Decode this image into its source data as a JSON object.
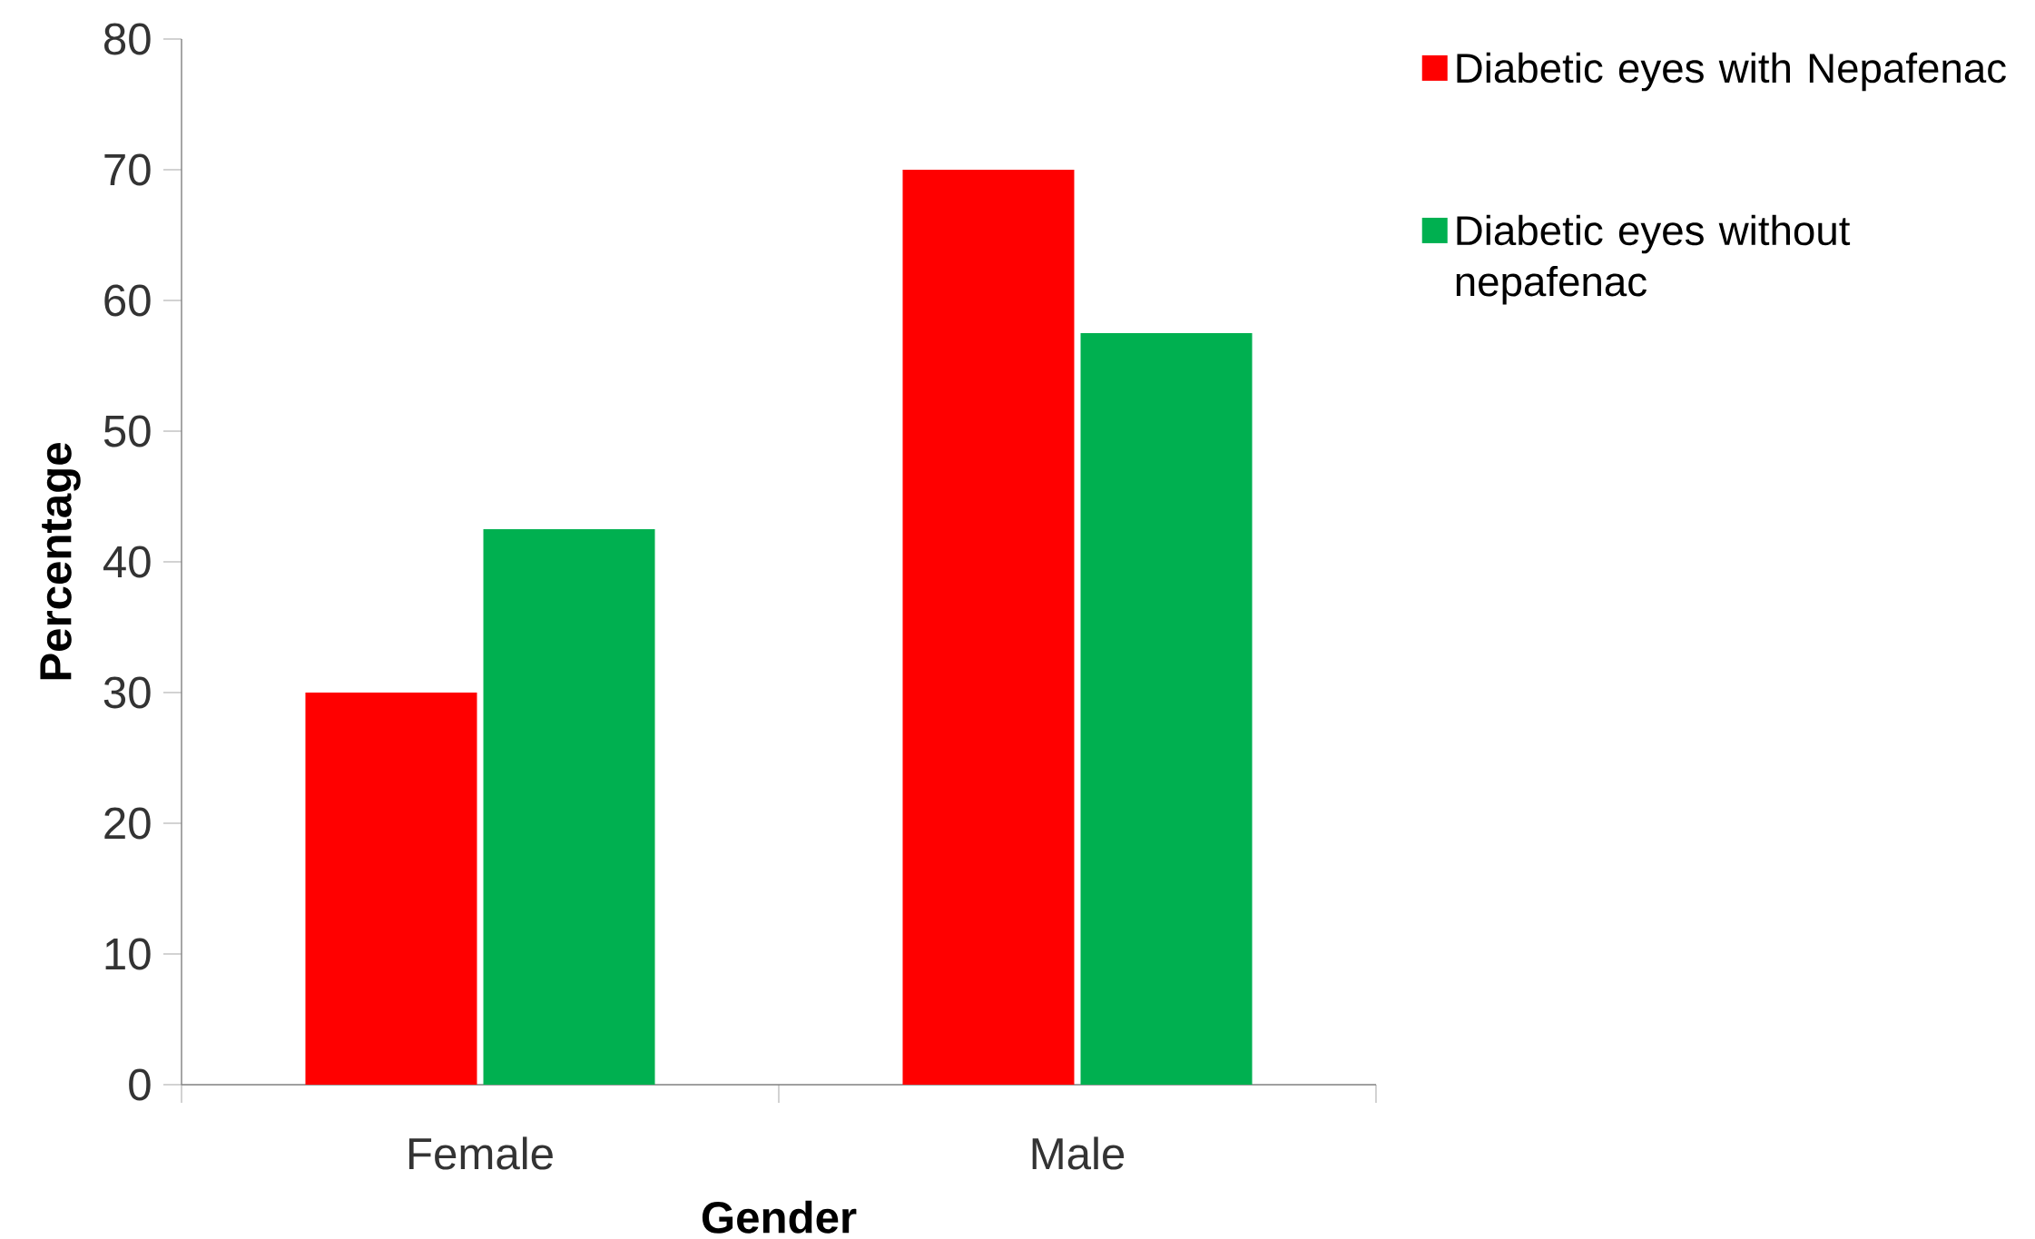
{
  "chart_data": {
    "type": "bar",
    "xlabel": "Gender",
    "ylabel": "Percentage",
    "categories": [
      "Female",
      "Male"
    ],
    "series": [
      {
        "name": "Diabetic eyes with Nepafenac",
        "color": "#ff0000",
        "values": [
          30,
          70
        ]
      },
      {
        "name": "Diabetic eyes without nepafenac",
        "color": "#00b050",
        "values": [
          42.5,
          57.5
        ]
      }
    ],
    "ylim": [
      0,
      80
    ],
    "yticks": [
      0,
      10,
      20,
      30,
      40,
      50,
      60,
      70,
      80
    ],
    "grid": false,
    "legend": "top right"
  }
}
